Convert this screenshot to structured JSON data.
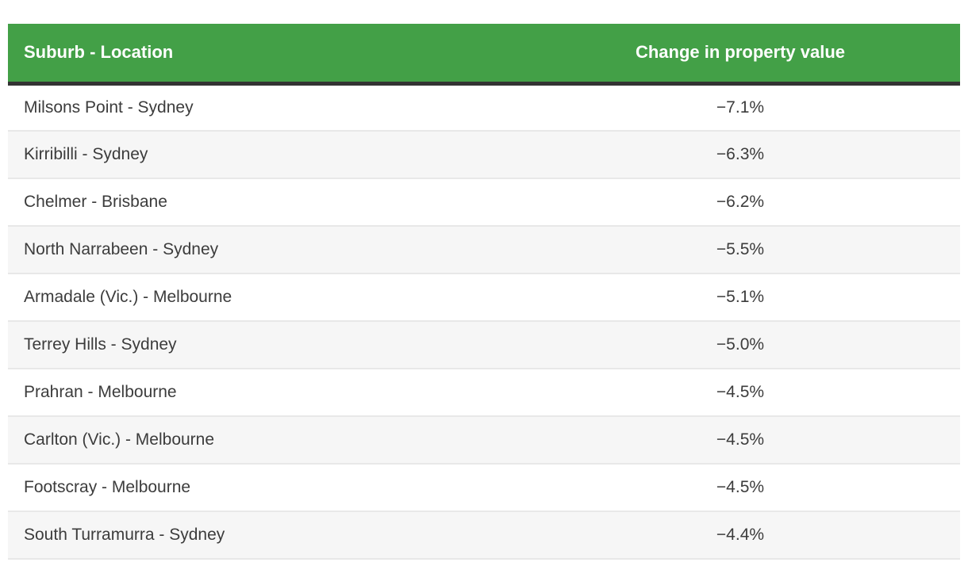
{
  "colors": {
    "header_bg": "#43a047",
    "header_text": "#ffffff",
    "header_rule": "#333333",
    "row_text": "#3c3c3c",
    "stripe_bg": "#f6f6f6",
    "row_border": "#e8e8e8",
    "page_bg": "#ffffff"
  },
  "table": {
    "header": {
      "suburb_label": "Suburb - Location",
      "change_label": "Change in property value"
    },
    "rows": [
      {
        "suburb": "Milsons Point - Sydney",
        "change": "−7.1%"
      },
      {
        "suburb": "Kirribilli - Sydney",
        "change": "−6.3%"
      },
      {
        "suburb": "Chelmer - Brisbane",
        "change": "−6.2%"
      },
      {
        "suburb": "North Narrabeen - Sydney",
        "change": "−5.5%"
      },
      {
        "suburb": "Armadale (Vic.) - Melbourne",
        "change": "−5.1%"
      },
      {
        "suburb": "Terrey Hills - Sydney",
        "change": "−5.0%"
      },
      {
        "suburb": "Prahran - Melbourne",
        "change": "−4.5%"
      },
      {
        "suburb": "Carlton (Vic.) - Melbourne",
        "change": "−4.5%"
      },
      {
        "suburb": "Footscray - Melbourne",
        "change": "−4.5%"
      },
      {
        "suburb": "South Turramurra - Sydney",
        "change": "−4.4%"
      }
    ]
  },
  "chart_data": {
    "type": "table",
    "columns": [
      "Suburb - Location",
      "Change in property value"
    ],
    "rows": [
      [
        "Milsons Point - Sydney",
        "−7.1%"
      ],
      [
        "Kirribilli - Sydney",
        "−6.3%"
      ],
      [
        "Chelmer - Brisbane",
        "−6.2%"
      ],
      [
        "North Narrabeen - Sydney",
        "−5.5%"
      ],
      [
        "Armadale (Vic.) - Melbourne",
        "−5.1%"
      ],
      [
        "Terrey Hills - Sydney",
        "−5.0%"
      ],
      [
        "Prahran - Melbourne",
        "−4.5%"
      ],
      [
        "Carlton (Vic.) - Melbourne",
        "−4.5%"
      ],
      [
        "Footscray - Melbourne",
        "−4.5%"
      ],
      [
        "South Turramurra - Sydney",
        "−4.4%"
      ]
    ],
    "change_percent_values": [
      -7.1,
      -6.3,
      -6.2,
      -5.5,
      -5.1,
      -5.0,
      -4.5,
      -4.5,
      -4.5,
      -4.4
    ],
    "layout": "two-column striped table, value column center-aligned, no title visible"
  }
}
